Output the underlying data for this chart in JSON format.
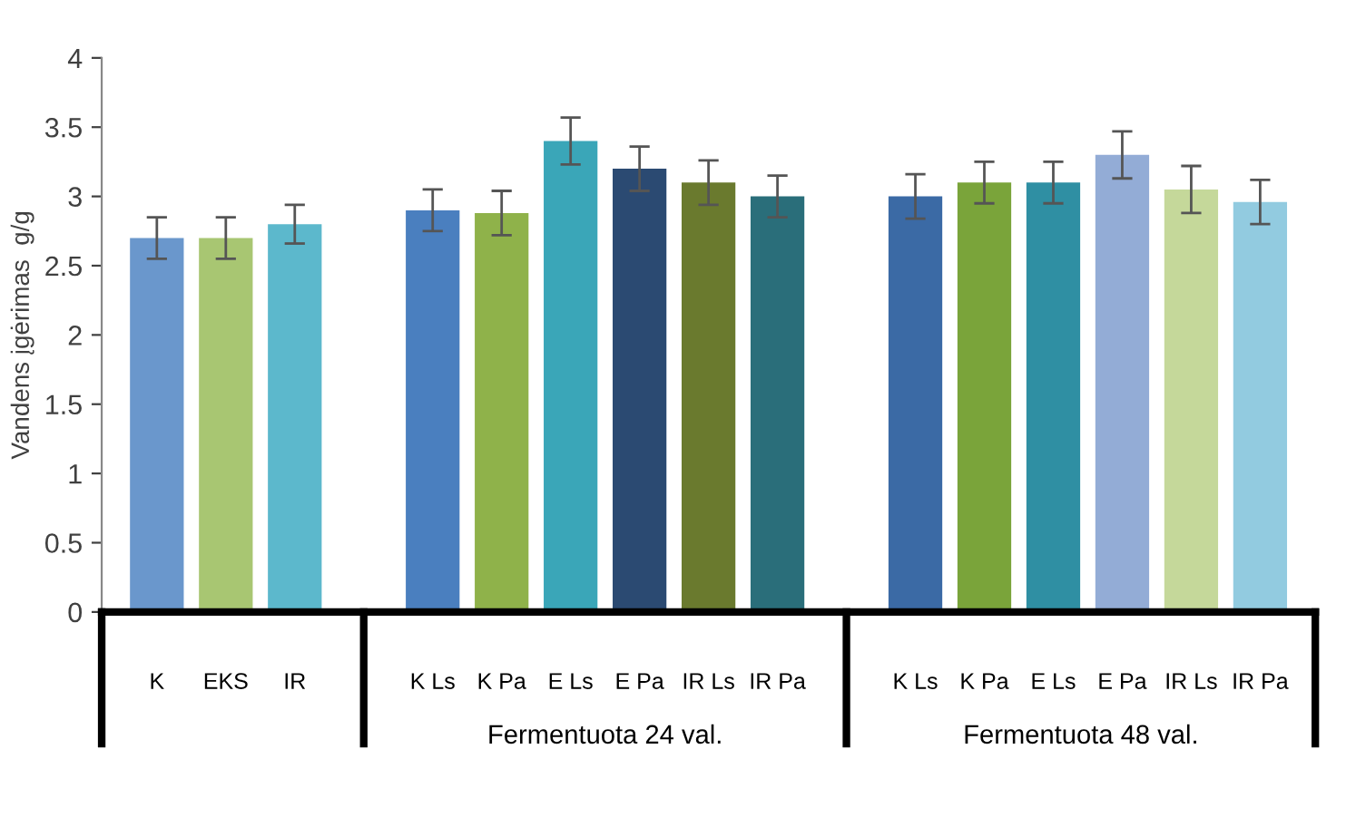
{
  "chart_data": {
    "type": "bar",
    "ylabel": "Vandens įgėrimas  g/g",
    "categories": [
      "K",
      "EKS",
      "IR",
      null,
      "K Ls",
      "K Pa",
      "E Ls",
      "E Pa",
      "IR Ls",
      "IR Pa",
      null,
      "K Ls",
      "K Pa",
      "E Ls",
      "E Pa",
      "IR Ls",
      "IR Pa"
    ],
    "values": [
      2.7,
      2.7,
      2.8,
      null,
      2.9,
      2.88,
      3.4,
      3.2,
      3.1,
      3.0,
      null,
      3.0,
      3.1,
      3.1,
      3.3,
      3.05,
      2.96
    ],
    "errors": [
      0.15,
      0.15,
      0.14,
      null,
      0.15,
      0.16,
      0.17,
      0.16,
      0.16,
      0.15,
      null,
      0.16,
      0.15,
      0.15,
      0.17,
      0.17,
      0.16
    ],
    "colors": [
      "#6a97cc",
      "#a8c672",
      "#5cb8cc",
      null,
      "#4a7fbf",
      "#8fb24a",
      "#3aa6b8",
      "#2b4a72",
      "#6a7a2e",
      "#2a6e7a",
      null,
      "#3b6aa5",
      "#7aa43a",
      "#2f8fa3",
      "#93acd6",
      "#c5d89a",
      "#92cbe0"
    ],
    "ylim": [
      0,
      4
    ],
    "yticks": [
      0,
      0.5,
      1,
      1.5,
      2,
      2.5,
      3,
      3.5,
      4
    ],
    "grid": false,
    "legend": false,
    "annotations": [
      "Fermentuota 24 val.",
      "Fermentuota 48 val."
    ]
  }
}
